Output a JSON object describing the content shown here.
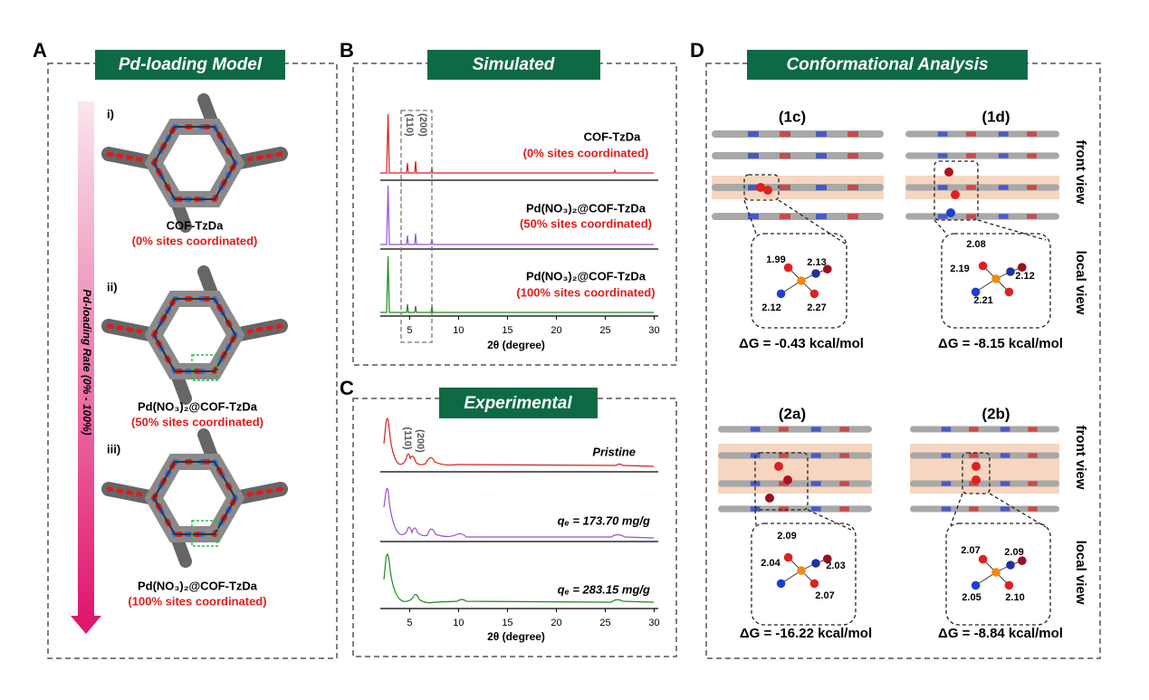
{
  "figure": {
    "A": {
      "letter": "A",
      "title": "Pd-loading Model",
      "axis_label": "Pd-loading Rate  (0% - 100%)",
      "items": [
        {
          "roman": "i)",
          "name": "COF-TzDa",
          "note": "(0% sites coordinated)"
        },
        {
          "roman": "ii)",
          "name": "Pd(NO₃)₂@COF-TzDa",
          "note": "(50% sites coordinated)"
        },
        {
          "roman": "iii)",
          "name": "Pd(NO₃)₂@COF-TzDa",
          "note": "(100% sites coordinated)"
        }
      ]
    },
    "B": {
      "letter": "B",
      "title": "Simulated",
      "xlabel": "2θ (degree)",
      "xlim": [
        2,
        30
      ],
      "xticks": [
        5,
        10,
        15,
        20,
        25,
        30
      ],
      "peaks": [
        "(110)",
        "(200)"
      ],
      "traces": [
        {
          "name": "COF-TzDa",
          "note": "(0% sites coordinated)",
          "color": "#d42020"
        },
        {
          "name": "Pd(NO₃)₂@COF-TzDa",
          "note": "(50% sites coordinated)",
          "color": "#9b4fd6"
        },
        {
          "name": "Pd(NO₃)₂@COF-TzDa",
          "note": "(100% sites coordinated)",
          "color": "#1c8a1c"
        }
      ]
    },
    "C": {
      "letter": "C",
      "title": "Experimental",
      "xlabel": "2θ (degree)",
      "xlim": [
        2,
        30
      ],
      "xticks": [
        5,
        10,
        15,
        20,
        25,
        30
      ],
      "peaks": [
        "(110)",
        "(200)"
      ],
      "traces": [
        {
          "name": "Pristine",
          "color": "#d42020"
        },
        {
          "name": "qₑ = 173.70  mg/g",
          "color": "#9b4fd6"
        },
        {
          "name": "qₑ = 283.15  mg/g",
          "color": "#1c8a1c"
        }
      ]
    },
    "D": {
      "letter": "D",
      "title": "Conformational Analysis",
      "front_view": "front view",
      "local_view": "local view",
      "structures": [
        {
          "label": "(1c)",
          "bonds": [
            "1.99",
            "2.13",
            "2.12",
            "2.27"
          ],
          "dg": "ΔG = -0.43 kcal/mol"
        },
        {
          "label": "(1d)",
          "bonds": [
            "2.08",
            "2.19",
            "2.12",
            "2.21"
          ],
          "dg": "ΔG = -8.15 kcal/mol"
        },
        {
          "label": "(2a)",
          "bonds": [
            "2.09",
            "2.04",
            "2.03",
            "2.07"
          ],
          "dg": "ΔG = -16.22 kcal/mol"
        },
        {
          "label": "(2b)",
          "bonds": [
            "2.07",
            "2.09",
            "2.05",
            "2.10"
          ],
          "dg": "ΔG =  -8.84 kcal/mol"
        }
      ]
    }
  }
}
